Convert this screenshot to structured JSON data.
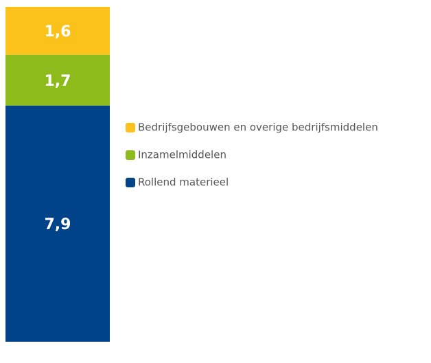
{
  "chart_data": {
    "type": "stacked_bar",
    "categories": [
      null
    ],
    "series": [
      {
        "name": "Bedrijfsgebouwen en overige bedrijfsmiddelen",
        "color": "#fbc21b",
        "values": [
          1.6
        ],
        "value_labels": [
          "1,6"
        ]
      },
      {
        "name": "Inzamelmiddelen",
        "color": "#8dbb1b",
        "values": [
          1.7
        ],
        "value_labels": [
          "1,7"
        ]
      },
      {
        "name": "Rollend materieel",
        "color": "#004388",
        "values": [
          7.9
        ],
        "value_labels": [
          "7,9"
        ]
      }
    ]
  }
}
